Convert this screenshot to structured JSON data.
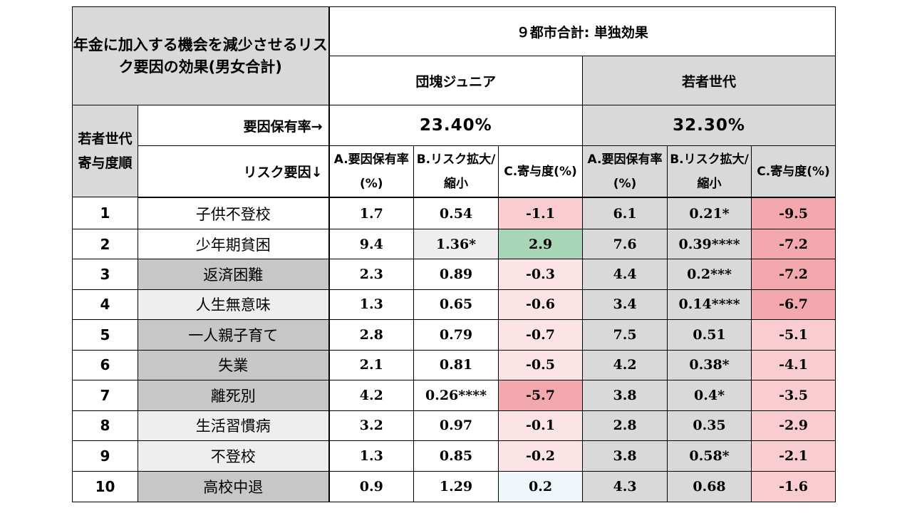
{
  "table": {
    "title": "年金に加入する機会を減少させるリスク要因の効果(男女合計)",
    "header_main": "９都市合計: 単独効果",
    "group1_name": "団塊ジュニア",
    "group2_name": "若者世代",
    "rank_header": "若者世代寄与度順",
    "prevalence_label": "要因保有率→",
    "prevalence_group1": "23.40%",
    "prevalence_group2": "32.30%",
    "risk_factor_label": "リスク要因↓",
    "col_a": "A.要因保有率(%)",
    "col_b": "B.リスク拡大/縮小",
    "col_c": "C.寄与度(%)",
    "rows": [
      {
        "rank": "1",
        "factor": "子供不登校",
        "g1a": "1.7",
        "g1b": "0.54",
        "g1c": "-1.1",
        "g2a": "6.1",
        "g2b": "0.21*",
        "g2c": "-9.5"
      },
      {
        "rank": "2",
        "factor": "少年期貧困",
        "g1a": "9.4",
        "g1b": "1.36*",
        "g1c": "2.9",
        "g2a": "7.6",
        "g2b": "0.39****",
        "g2c": "-7.2"
      },
      {
        "rank": "3",
        "factor": "返済困難",
        "g1a": "2.3",
        "g1b": "0.89",
        "g1c": "-0.3",
        "g2a": "4.4",
        "g2b": "0.2***",
        "g2c": "-7.2"
      },
      {
        "rank": "4",
        "factor": "人生無意味",
        "g1a": "1.3",
        "g1b": "0.65",
        "g1c": "-0.6",
        "g2a": "3.4",
        "g2b": "0.14****",
        "g2c": "-6.7"
      },
      {
        "rank": "5",
        "factor": "一人親子育て",
        "g1a": "2.8",
        "g1b": "0.79",
        "g1c": "-0.7",
        "g2a": "7.5",
        "g2b": "0.51",
        "g2c": "-5.1"
      },
      {
        "rank": "6",
        "factor": "失業",
        "g1a": "2.1",
        "g1b": "0.81",
        "g1c": "-0.5",
        "g2a": "4.2",
        "g2b": "0.38*",
        "g2c": "-4.1"
      },
      {
        "rank": "7",
        "factor": "離死別",
        "g1a": "4.2",
        "g1b": "0.26****",
        "g1c": "-5.7",
        "g2a": "3.8",
        "g2b": "0.4*",
        "g2c": "-3.5"
      },
      {
        "rank": "8",
        "factor": "生活習慣病",
        "g1a": "3.2",
        "g1b": "0.97",
        "g1c": "-0.1",
        "g2a": "2.8",
        "g2b": "0.35",
        "g2c": "-2.9"
      },
      {
        "rank": "9",
        "factor": "不登校",
        "g1a": "1.3",
        "g1b": "0.85",
        "g1c": "-0.2",
        "g2a": "3.8",
        "g2b": "0.58*",
        "g2c": "-2.1"
      },
      {
        "rank": "10",
        "factor": "高校中退",
        "g1a": "0.9",
        "g1b": "1.29",
        "g1c": "0.2",
        "g2a": "4.3",
        "g2b": "0.68",
        "g2c": "-1.6"
      }
    ]
  },
  "colors": {
    "header_gray": "#d9d9d9",
    "factor_dark": "#c7c7c7",
    "factor_light": "#eeeeee",
    "positive_green": "#a8d5b5",
    "negative_strong": "#f2a8ad",
    "negative_light": "#fce4e6"
  }
}
